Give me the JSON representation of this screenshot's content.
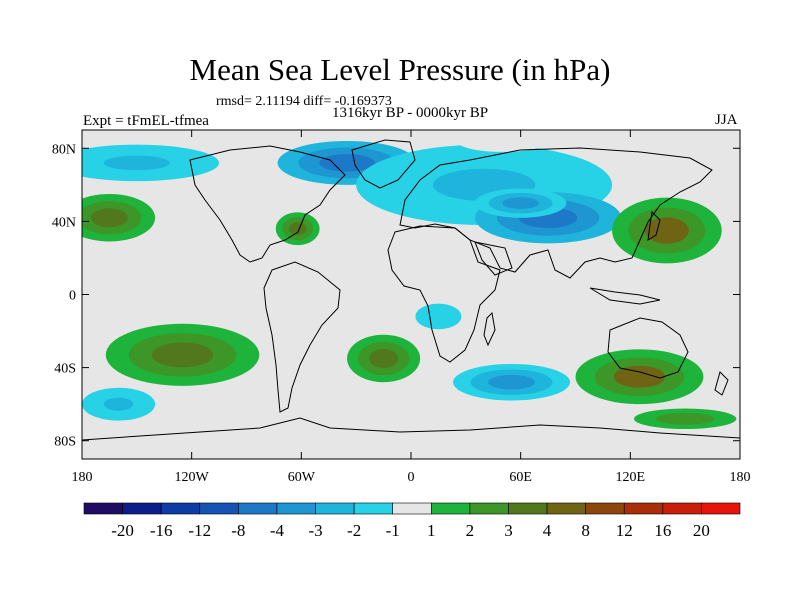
{
  "chart_data": {
    "type": "heatmap",
    "title": "Mean Sea Level Pressure (in hPa)",
    "stats_line": "rmsd= 2.11194 diff= -0.169373",
    "subtitle": "1316kyr BP - 0000kyr BP",
    "experiment": "Expt = tFmEL-tfmea",
    "season": "JJA",
    "x_ticks": [
      "180",
      "120W",
      "60W",
      "0",
      "60E",
      "120E",
      "180"
    ],
    "y_ticks": [
      "80N",
      "40N",
      "0",
      "40S",
      "80S"
    ],
    "xlim": [
      -180,
      180
    ],
    "ylim": [
      -90,
      90
    ],
    "colorbar": {
      "labels": [
        "-20",
        "-16",
        "-12",
        "-8",
        "-4",
        "-3",
        "-2",
        "-1",
        "1",
        "2",
        "3",
        "4",
        "8",
        "12",
        "16",
        "20"
      ],
      "colors": [
        "#210c64",
        "#0b1e8c",
        "#0e3ca5",
        "#1554b4",
        "#1e78c8",
        "#1e96d2",
        "#1eb4dc",
        "#28d2e6",
        "#e6e6e6",
        "#1eb43c",
        "#3c9628",
        "#52781e",
        "#6e6414",
        "#8c460c",
        "#aa2d0a",
        "#c81e0a",
        "#e6140a"
      ]
    },
    "anomaly_regions": [
      {
        "name": "arctic-north-atlantic-low",
        "lon": -35,
        "lat": 72,
        "rlon": 38,
        "rlat": 12,
        "value": -5
      },
      {
        "name": "north-pacific-arctic-low",
        "lon": -150,
        "lat": 72,
        "rlon": 45,
        "rlat": 10,
        "value": -2.5
      },
      {
        "name": "eurasia-low",
        "lon": 40,
        "lat": 60,
        "rlon": 70,
        "rlat": 22,
        "value": -2.5
      },
      {
        "name": "asian-monsoon-low",
        "lon": 75,
        "lat": 42,
        "rlon": 40,
        "rlat": 14,
        "value": -5
      },
      {
        "name": "central-asia-low",
        "lon": 60,
        "lat": 50,
        "rlon": 25,
        "rlat": 8,
        "value": -4
      },
      {
        "name": "arctic-high",
        "lon": 50,
        "lat": 84,
        "rlon": 25,
        "rlat": 6,
        "value": 0
      },
      {
        "name": "north-pacific-high",
        "lon": -165,
        "lat": 42,
        "rlon": 25,
        "rlat": 13,
        "value": 3.5
      },
      {
        "name": "atlantic-high",
        "lon": -62,
        "lat": 36,
        "rlon": 12,
        "rlat": 9,
        "value": 3.5
      },
      {
        "name": "west-pacific-high",
        "lon": 140,
        "lat": 35,
        "rlon": 30,
        "rlat": 18,
        "value": 4
      },
      {
        "name": "south-pacific-high",
        "lon": -125,
        "lat": -33,
        "rlon": 42,
        "rlat": 17,
        "value": 3.5
      },
      {
        "name": "south-atlantic-high",
        "lon": -15,
        "lat": -35,
        "rlon": 20,
        "rlat": 13,
        "value": 3
      },
      {
        "name": "australia-high",
        "lon": 125,
        "lat": -45,
        "rlon": 35,
        "rlat": 15,
        "value": 4
      },
      {
        "name": "southern-indian-low",
        "lon": 55,
        "lat": -48,
        "rlon": 32,
        "rlat": 10,
        "value": -3.5
      },
      {
        "name": "south-pacific-low",
        "lon": -160,
        "lat": -60,
        "rlon": 20,
        "rlat": 9,
        "value": -2.5
      },
      {
        "name": "southern-ocean-positive",
        "lon": 150,
        "lat": -68,
        "rlon": 40,
        "rlat": 8,
        "value": 2
      },
      {
        "name": "east-africa-low",
        "lon": 15,
        "lat": -12,
        "rlon": 18,
        "rlat": 10,
        "value": -2
      }
    ]
  }
}
